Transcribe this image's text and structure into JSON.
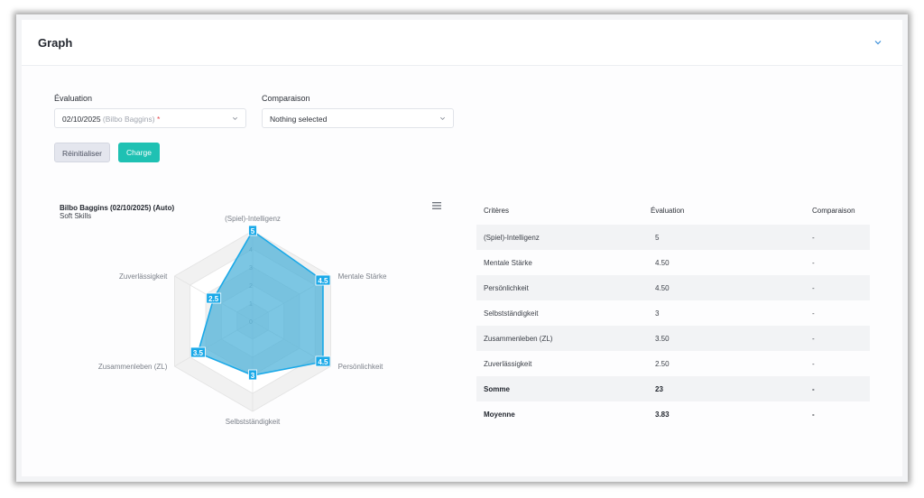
{
  "card": {
    "title": "Graph"
  },
  "filters": {
    "evaluation_label": "Évaluation",
    "evaluation_date": "02/10/2025",
    "evaluation_person": "(Bilbo Baggins)",
    "evaluation_required": "*",
    "comparison_label": "Comparaison",
    "comparison_value": "Nothing selected"
  },
  "buttons": {
    "reset": "Réinitialiser",
    "load": "Charge"
  },
  "chart": {
    "title": "Bilbo Baggins (02/10/2025) (Auto)",
    "subtitle": "Soft Skills"
  },
  "chart_data": {
    "type": "radar",
    "title": "Bilbo Baggins (02/10/2025) (Auto)",
    "subtitle": "Soft Skills",
    "categories": [
      "(Spiel)-Intelligenz",
      "Mentale Stärke",
      "Persönlichkeit",
      "Selbstständigkeit",
      "Zusammenleben (ZL)",
      "Zuverlässigkeit"
    ],
    "values": [
      5,
      4.5,
      4.5,
      3,
      3.5,
      2.5
    ],
    "value_labels": [
      "5",
      "4.5",
      "4.5",
      "3",
      "3.5",
      "2.5"
    ],
    "rlim": [
      0,
      5
    ],
    "radial_ticks": [
      "0",
      "1",
      "2",
      "3",
      "4"
    ],
    "color": "#1aa9e8",
    "fill": "#4ab0d8"
  },
  "table": {
    "headers": {
      "criteria": "Critères",
      "evaluation": "Évaluation",
      "comparison": "Comparaison"
    },
    "rows": [
      {
        "criteria": "(Spiel)-Intelligenz",
        "evaluation": "5",
        "comparison": "-"
      },
      {
        "criteria": "Mentale Stärke",
        "evaluation": "4.50",
        "comparison": "-"
      },
      {
        "criteria": "Persönlichkeit",
        "evaluation": "4.50",
        "comparison": "-"
      },
      {
        "criteria": "Selbstständigkeit",
        "evaluation": "3",
        "comparison": "-"
      },
      {
        "criteria": "Zusammenleben (ZL)",
        "evaluation": "3.50",
        "comparison": "-"
      },
      {
        "criteria": "Zuverlässigkeit",
        "evaluation": "2.50",
        "comparison": "-"
      }
    ],
    "sum": {
      "label": "Somme",
      "evaluation": "23",
      "comparison": "-"
    },
    "avg": {
      "label": "Moyenne",
      "evaluation": "3.83",
      "comparison": "-"
    }
  }
}
